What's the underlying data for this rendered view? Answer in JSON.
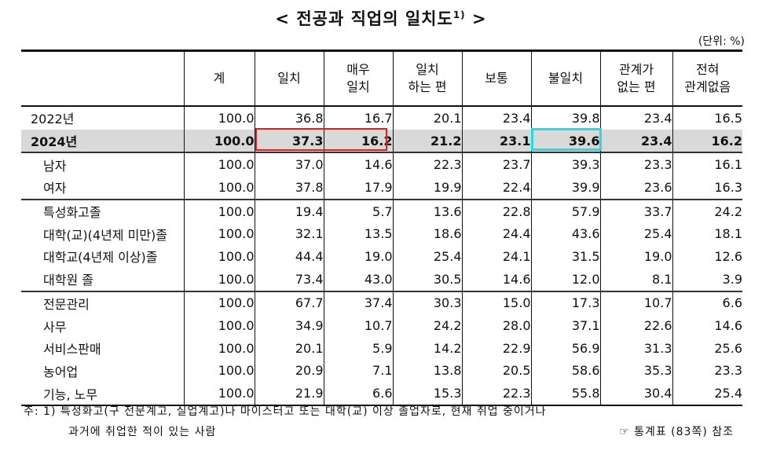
{
  "title": "< 전공과 직업의 일치도",
  "title_sup": "1)",
  "title_end": " >",
  "unit": "(단위: %)",
  "headers": [
    {
      "l1": "",
      "l2": ""
    },
    {
      "l1": "계",
      "l2": ""
    },
    {
      "l1": "일치",
      "l2": ""
    },
    {
      "l1": "매우",
      "l2": "일치"
    },
    {
      "l1": "일치",
      "l2": "하는 편"
    },
    {
      "l1": "보통",
      "l2": ""
    },
    {
      "l1": "불일치",
      "l2": ""
    },
    {
      "l1": "관계가",
      "l2": "없는 편"
    },
    {
      "l1": "전혀",
      "l2": "관계없음"
    }
  ],
  "rows": [
    {
      "label": "2022년",
      "values": [
        "100.0",
        "36.8",
        "16.7",
        "20.1",
        "23.4",
        "39.8",
        "23.4",
        "16.5"
      ]
    },
    {
      "label": "2024년",
      "values": [
        "100.0",
        "37.3",
        "16.2",
        "21.2",
        "23.1",
        "39.6",
        "23.4",
        "16.2"
      ]
    },
    {
      "label": "남자",
      "values": [
        "100.0",
        "37.0",
        "14.6",
        "22.3",
        "23.7",
        "39.3",
        "23.3",
        "16.1"
      ]
    },
    {
      "label": "여자",
      "values": [
        "100.0",
        "37.8",
        "17.9",
        "19.9",
        "22.4",
        "39.9",
        "23.6",
        "16.3"
      ]
    },
    {
      "label": "특성화고졸",
      "values": [
        "100.0",
        "19.4",
        "5.7",
        "13.6",
        "22.8",
        "57.9",
        "33.7",
        "24.2"
      ]
    },
    {
      "label": "대학(교)(4년제 미만)졸",
      "values": [
        "100.0",
        "32.1",
        "13.5",
        "18.6",
        "24.4",
        "43.6",
        "25.4",
        "18.1"
      ]
    },
    {
      "label": "대학교(4년제 이상)졸",
      "values": [
        "100.0",
        "44.4",
        "19.0",
        "25.4",
        "24.1",
        "31.5",
        "19.0",
        "12.6"
      ]
    },
    {
      "label": "대학원 졸",
      "values": [
        "100.0",
        "73.4",
        "43.0",
        "30.5",
        "14.6",
        "12.0",
        "8.1",
        "3.9"
      ]
    },
    {
      "label": "전문관리",
      "values": [
        "100.0",
        "67.7",
        "37.4",
        "30.3",
        "15.0",
        "17.3",
        "10.7",
        "6.6"
      ]
    },
    {
      "label": "사무",
      "values": [
        "100.0",
        "34.9",
        "10.7",
        "24.2",
        "28.0",
        "37.1",
        "22.6",
        "14.6"
      ]
    },
    {
      "label": "서비스판매",
      "values": [
        "100.0",
        "20.1",
        "5.9",
        "14.2",
        "22.9",
        "56.9",
        "31.3",
        "25.6"
      ]
    },
    {
      "label": "농어업",
      "values": [
        "100.0",
        "20.9",
        "7.1",
        "13.8",
        "20.5",
        "58.6",
        "35.3",
        "23.3"
      ]
    },
    {
      "label": "기능, 노무",
      "values": [
        "100.0",
        "21.9",
        "6.6",
        "15.3",
        "22.3",
        "55.8",
        "30.4",
        "25.4"
      ]
    }
  ],
  "note_line1": "주: 1) 특성화고(구 전문계고, 실업계고)나 마이스터고 또는 대학(교) 이상 졸업자로, 현재 취업 중이거나",
  "note_line2": "과거에 취업한 적이 있는 사람",
  "reference": "☞ 통계표 (83쪽) 참조",
  "colors": {
    "highlight_row": "#d9d9d9",
    "red_box": "#e0201f",
    "cyan_box": "#22dde8"
  }
}
